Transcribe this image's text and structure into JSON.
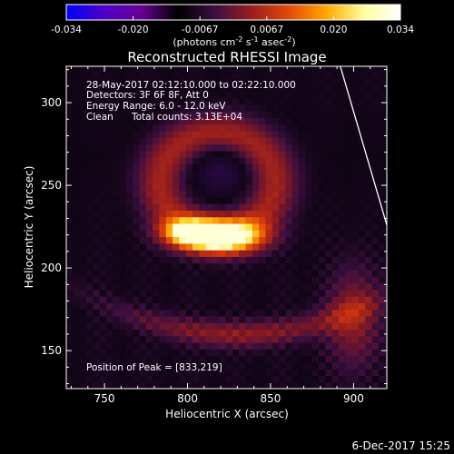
{
  "title": "Reconstructed RHESSI Image",
  "colorbar": {
    "ticks": [
      "-0.034",
      "-0.020",
      "-0.0067",
      "0.0067",
      "0.020",
      "0.034"
    ],
    "unit_prefix": "(photons cm",
    "unit_exp1": "-2",
    "unit_mid1": " s",
    "unit_exp2": "-1",
    "unit_mid2": " asec",
    "unit_exp3": "-2",
    "unit_suffix": ")",
    "colors": [
      "#0000ff",
      "#4b00c8",
      "#6a0095",
      "#000000",
      "#3b0f3f",
      "#9a1e1e",
      "#e44a07",
      "#ffa700",
      "#ffff9a",
      "#ffffff"
    ]
  },
  "annotations": {
    "time_range": "28-May-2017 02:12:10.000 to 02:22:10.000",
    "detectors": "Detectors: 3F 6F 8F, Att 0",
    "energy": "Energy Range: 6.0 - 12.0 keV",
    "method": "Clean",
    "counts": "Total counts: 3.13E+04",
    "peak": "Position of Peak = [833,219]"
  },
  "footer_date": "6-Dec-2017 15:25",
  "chart_data": {
    "type": "heatmap",
    "title": "Reconstructed RHESSI Image",
    "xlabel": "Heliocentric X (arcsec)",
    "ylabel": "Heliocentric Y (arcsec)",
    "xlim": [
      727,
      920
    ],
    "ylim": [
      127,
      322
    ],
    "xticks": [
      750,
      800,
      850,
      900
    ],
    "yticks": [
      150,
      200,
      250,
      300
    ],
    "xtick_labels": [
      "750",
      "800",
      "850",
      "900"
    ],
    "ytick_labels": [
      "150",
      "200",
      "250",
      "300"
    ],
    "colorbar_range": [
      -0.034,
      0.034
    ],
    "peak": [
      833,
      219
    ],
    "features": [
      {
        "x": 822,
        "y": 219,
        "sx": 17,
        "sy": 7,
        "amp": 0.034,
        "description": "bright core"
      },
      {
        "x": 800,
        "y": 222,
        "sx": 12,
        "sy": 6,
        "amp": 0.022
      },
      {
        "x": 818,
        "y": 252,
        "sx": 30,
        "sy": 30,
        "amp": 0.014,
        "description": "ring"
      },
      {
        "x": 820,
        "y": 258,
        "sx": 11,
        "sy": 10,
        "amp": -0.01,
        "description": "dark center"
      },
      {
        "x": 830,
        "y": 160,
        "sx": 35,
        "sy": 6,
        "amp": 0.012,
        "description": "lower arc"
      },
      {
        "x": 900,
        "y": 170,
        "sx": 12,
        "sy": 22,
        "amp": 0.012,
        "description": "right arc"
      }
    ],
    "limb_line": [
      [
        892,
        322
      ],
      [
        920,
        226
      ]
    ]
  }
}
